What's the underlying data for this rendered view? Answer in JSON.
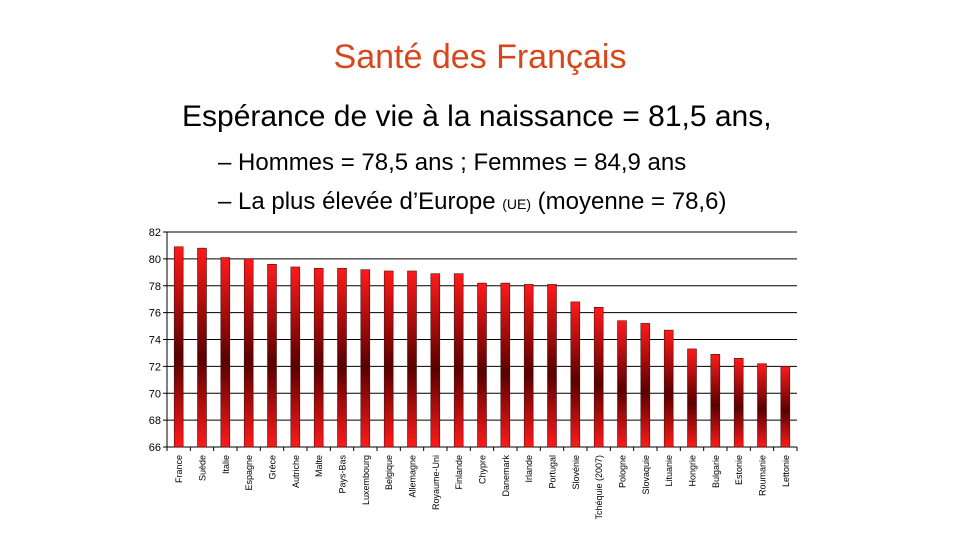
{
  "slide": {
    "title": "Santé des Français",
    "bullet_main": "Espérance de vie à la naissance = 81,5 ans,",
    "sub1": "– Hommes = 78,5 ans ; Femmes = 84,9 ans",
    "sub2_a": "– La plus élevée d’Europe ",
    "sub2_small": "(UE)",
    "sub2_b": " (moyenne = 78,6)"
  },
  "colors": {
    "title": "#d8461b",
    "bar_top": "#ff1a1a",
    "bar_mid": "#5a0000"
  },
  "chart_data": {
    "type": "bar",
    "categories": [
      "France",
      "Suède",
      "Italie",
      "Espagne",
      "Grèce",
      "Autriche",
      "Malte",
      "Pays-Bas",
      "Luxembourg",
      "Belgique",
      "Allemagne",
      "Royaume-Uni",
      "Finlande",
      "Chypre",
      "Danemark",
      "Irlande",
      "Portugal",
      "Slovénie",
      "Tchéquie (2007)",
      "Pologne",
      "Slovaquie",
      "Lituanie",
      "Hongrie",
      "Bulgarie",
      "Estonie",
      "Roumanie",
      "Lettonie"
    ],
    "values": [
      80.9,
      80.8,
      80.1,
      80.0,
      79.6,
      79.4,
      79.3,
      79.3,
      79.2,
      79.1,
      79.1,
      78.9,
      78.9,
      78.2,
      78.2,
      78.1,
      78.1,
      76.8,
      76.4,
      75.4,
      75.2,
      74.7,
      73.3,
      72.9,
      72.6,
      72.2,
      72.0
    ],
    "ylim": [
      66,
      82
    ],
    "yticks": [
      "66",
      "68",
      "70",
      "72",
      "74",
      "76",
      "78",
      "80",
      "82"
    ],
    "grid": true
  }
}
